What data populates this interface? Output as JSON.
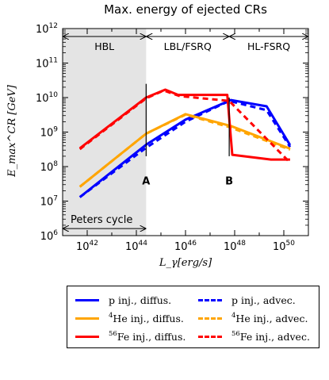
{
  "chart_data": {
    "type": "line",
    "title": "Max. energy of ejected CRs",
    "xlabel": "L_γ[erg/s]",
    "ylabel": "E_max^CR [GeV]",
    "xscale": "log",
    "yscale": "log",
    "xlim": [
      1e+41,
      1e+51
    ],
    "ylim": [
      1000000.0,
      1000000000000.0
    ],
    "x_ticks": [
      {
        "value": 1e+42,
        "base": "10",
        "exp": "42"
      },
      {
        "value": 1e+44,
        "base": "10",
        "exp": "44"
      },
      {
        "value": 1e+46,
        "base": "10",
        "exp": "46"
      },
      {
        "value": 1e+48,
        "base": "10",
        "exp": "48"
      },
      {
        "value": 1e+50,
        "base": "10",
        "exp": "50"
      }
    ],
    "y_ticks": [
      {
        "value": 1000000.0,
        "base": "10",
        "exp": "6"
      },
      {
        "value": 10000000.0,
        "base": "10",
        "exp": "7"
      },
      {
        "value": 100000000.0,
        "base": "10",
        "exp": "8"
      },
      {
        "value": 1000000000.0,
        "base": "10",
        "exp": "9"
      },
      {
        "value": 10000000000.0,
        "base": "10",
        "exp": "10"
      },
      {
        "value": 100000000000.0,
        "base": "10",
        "exp": "11"
      },
      {
        "value": 1000000000000.0,
        "base": "10",
        "exp": "12"
      }
    ],
    "regions": [
      {
        "label": "HBL",
        "x0": 1e+41,
        "x1": 2.5e+44,
        "shaded": true
      },
      {
        "label": "LBL/FSRQ",
        "x0": 2.5e+44,
        "x1": 6e+47,
        "shaded": false
      },
      {
        "label": "HL-FSRQ",
        "x0": 6e+47,
        "x1": 1e+51,
        "shaded": false
      }
    ],
    "annotations": [
      {
        "label": "Peters cycle",
        "x0": 1e+41,
        "x1": 2.5e+44,
        "y": 1600000.0
      },
      {
        "label": "A",
        "x": 2.5e+44,
        "y": 30000000.0,
        "line": [
          2.5e+44,
          200000000.0,
          25000000000.0
        ]
      },
      {
        "label": "B",
        "x": 6e+47,
        "y": 30000000.0,
        "line": [
          6e+47,
          200000000.0,
          10000000000.0
        ]
      }
    ],
    "series": [
      {
        "name": "p inj., diffus.",
        "color": "#0000ff",
        "dash": false,
        "x": [
          5e+41,
          2.5e+44,
          1e+46,
          7e+47,
          2e+49,
          1.8e+50
        ],
        "y": [
          13000000.0,
          430000000.0,
          2300000000.0,
          8500000000.0,
          5600000000.0,
          420000000.0
        ]
      },
      {
        "name": "p inj., advec.",
        "color": "#0000ff",
        "dash": true,
        "x": [
          5e+41,
          2.5e+44,
          1e+46,
          6e+47,
          2e+49,
          1.8e+50
        ],
        "y": [
          13000000.0,
          350000000.0,
          2000000000.0,
          8000000000.0,
          4300000000.0,
          370000000.0
        ]
      },
      {
        "name": "⁴He inj., diffus.",
        "color": "#ffa500",
        "dash": false,
        "x": [
          5e+41,
          2.5e+44,
          1e+46,
          7e+47,
          1.8e+50
        ],
        "y": [
          26000000.0,
          900000000.0,
          3300000000.0,
          1500000000.0,
          330000000.0
        ]
      },
      {
        "name": "⁴He inj., advec.",
        "color": "#ffa500",
        "dash": true,
        "x": [
          5e+41,
          2.5e+44,
          1e+46,
          6e+47,
          1.8e+50
        ],
        "y": [
          26000000.0,
          900000000.0,
          3200000000.0,
          1400000000.0,
          310000000.0
        ]
      },
      {
        "name": "⁵⁶Fe inj., diffus.",
        "color": "#ff0000",
        "dash": false,
        "x": [
          5e+41,
          2.5e+44,
          1.5e+45,
          5e+45,
          5e+47,
          8e+47,
          3e+49,
          1.8e+50
        ],
        "y": [
          340000000.0,
          10000000000.0,
          17000000000.0,
          12000000000.0,
          12000000000.0,
          220000000.0,
          160000000.0,
          160000000.0
        ]
      },
      {
        "name": "⁵⁶Fe inj., advec.",
        "color": "#ff0000",
        "dash": true,
        "x": [
          5e+41,
          2.5e+44,
          1.3e+45,
          6e+45,
          6e+47,
          3e+48,
          1.8e+50
        ],
        "y": [
          320000000.0,
          9500000000.0,
          16000000000.0,
          11000000000.0,
          8000000000.0,
          2500000000.0,
          130000000.0
        ]
      }
    ],
    "legend": {
      "placement": "below",
      "items": [
        {
          "pre": "p",
          "sup": "",
          "text": " inj., diffus.",
          "color": "#0000ff",
          "dash": false
        },
        {
          "pre": "p",
          "sup": "",
          "text": " inj., advec.",
          "color": "#0000ff",
          "dash": true
        },
        {
          "pre": "",
          "sup": "4",
          "text": "He inj., diffus.",
          "color": "#ffa500",
          "dash": false
        },
        {
          "pre": "",
          "sup": "4",
          "text": "He inj., advec.",
          "color": "#ffa500",
          "dash": true
        },
        {
          "pre": "",
          "sup": "56",
          "text": "Fe inj., diffus.",
          "color": "#ff0000",
          "dash": false
        },
        {
          "pre": "",
          "sup": "56",
          "text": "Fe inj., advec.",
          "color": "#ff0000",
          "dash": true
        }
      ]
    }
  }
}
